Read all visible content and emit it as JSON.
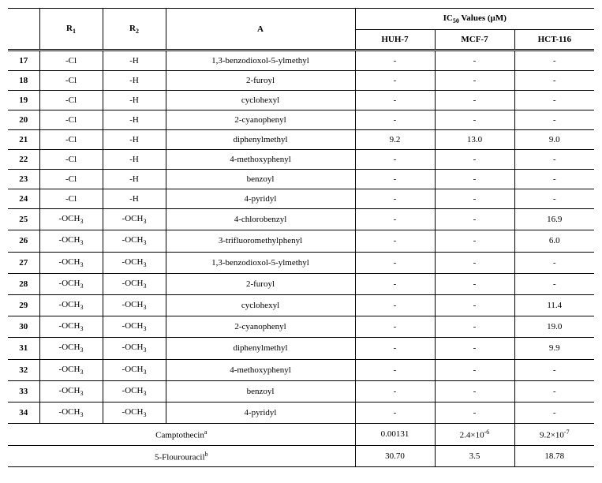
{
  "header": {
    "r1": "R<sub>1</sub>",
    "r2": "R<sub>2</sub>",
    "a": "A",
    "ic50_title": "IC<sub>50</sub> Values (µM)",
    "cells": [
      "HUH-7",
      "MCF-7",
      "HCT-116"
    ]
  },
  "rows": [
    {
      "id": "17",
      "r1": "-Cl",
      "r2": "-H",
      "a": "1,3-benzodioxol-5-ylmethyl",
      "v": [
        "-",
        "-",
        "-"
      ]
    },
    {
      "id": "18",
      "r1": "-Cl",
      "r2": "-H",
      "a": "2-furoyl",
      "v": [
        "-",
        "-",
        "-"
      ]
    },
    {
      "id": "19",
      "r1": "-Cl",
      "r2": "-H",
      "a": "cyclohexyl",
      "v": [
        "-",
        "-",
        "-"
      ]
    },
    {
      "id": "20",
      "r1": "-Cl",
      "r2": "-H",
      "a": "2-cyanophenyl",
      "v": [
        "-",
        "-",
        "-"
      ]
    },
    {
      "id": "21",
      "r1": "-Cl",
      "r2": "-H",
      "a": "diphenylmethyl",
      "v": [
        "9.2",
        "13.0",
        "9.0"
      ]
    },
    {
      "id": "22",
      "r1": "-Cl",
      "r2": "-H",
      "a": "4-methoxyphenyl",
      "v": [
        "-",
        "-",
        "-"
      ]
    },
    {
      "id": "23",
      "r1": "-Cl",
      "r2": "-H",
      "a": "benzoyl",
      "v": [
        "-",
        "-",
        "-"
      ]
    },
    {
      "id": "24",
      "r1": "-Cl",
      "r2": "-H",
      "a": "4-pyridyl",
      "v": [
        "-",
        "-",
        "-"
      ]
    },
    {
      "id": "25",
      "r1": "-OCH<sub>3</sub>",
      "r2": "-OCH<sub>3</sub>",
      "a": "4-chlorobenzyl",
      "v": [
        "-",
        "-",
        "16.9"
      ]
    },
    {
      "id": "26",
      "r1": "-OCH<sub>3</sub>",
      "r2": "-OCH<sub>3</sub>",
      "a": "3-trifluoromethylphenyl",
      "v": [
        "-",
        "-",
        "6.0"
      ]
    },
    {
      "id": "27",
      "r1": "-OCH<sub>3</sub>",
      "r2": "-OCH<sub>3</sub>",
      "a": "1,3-benzodioxol-5-ylmethyl",
      "v": [
        "-",
        "-",
        "-"
      ]
    },
    {
      "id": "28",
      "r1": "-OCH<sub>3</sub>",
      "r2": "-OCH<sub>3</sub>",
      "a": "2-furoyl",
      "v": [
        "-",
        "-",
        "-"
      ]
    },
    {
      "id": "29",
      "r1": "-OCH<sub>3</sub>",
      "r2": "-OCH<sub>3</sub>",
      "a": "cyclohexyl",
      "v": [
        "-",
        "-",
        "11.4"
      ]
    },
    {
      "id": "30",
      "r1": "-OCH<sub>3</sub>",
      "r2": "-OCH<sub>3</sub>",
      "a": "2-cyanophenyl",
      "v": [
        "-",
        "-",
        "19.0"
      ]
    },
    {
      "id": "31",
      "r1": "-OCH<sub>3</sub>",
      "r2": "-OCH<sub>3</sub>",
      "a": "diphenylmethyl",
      "v": [
        "-",
        "-",
        "9.9"
      ]
    },
    {
      "id": "32",
      "r1": "-OCH<sub>3</sub>",
      "r2": "-OCH<sub>3</sub>",
      "a": "4-methoxyphenyl",
      "v": [
        "-",
        "-",
        "-"
      ]
    },
    {
      "id": "33",
      "r1": "-OCH<sub>3</sub>",
      "r2": "-OCH<sub>3</sub>",
      "a": "benzoyl",
      "v": [
        "-",
        "-",
        "-"
      ]
    },
    {
      "id": "34",
      "r1": "-OCH<sub>3</sub>",
      "r2": "-OCH<sub>3</sub>",
      "a": "4-pyridyl",
      "v": [
        "-",
        "-",
        "-"
      ]
    }
  ],
  "footer": [
    {
      "label": "Camptothecin<sup>a</sup>",
      "v": [
        "0.00131",
        "2.4×10<sup>-6</sup>",
        "9.2×10<sup>-7</sup>"
      ]
    },
    {
      "label": "5-Flourouracil<sup>b</sup>",
      "v": [
        "30.70",
        "3.5",
        "18.78"
      ]
    }
  ]
}
